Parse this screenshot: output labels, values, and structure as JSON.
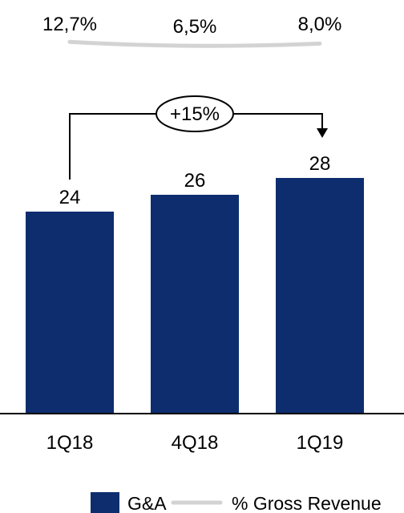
{
  "chart_data": {
    "type": "bar",
    "categories": [
      "1Q18",
      "4Q18",
      "1Q19"
    ],
    "series": [
      {
        "name": "G&A",
        "values": [
          24,
          26,
          28
        ],
        "color": "#0d2d6e"
      }
    ],
    "line_series": {
      "name": "% Gross Revenue",
      "values": [
        12.7,
        6.5,
        8.0
      ],
      "labels": [
        "12,7%",
        "6,5%",
        "8,0%"
      ],
      "color": "#d3d3d3"
    },
    "data_labels": [
      "24",
      "26",
      "28"
    ],
    "annotation": {
      "text": "+15%",
      "from": "1Q18",
      "to": "1Q19"
    },
    "ylim": [
      0,
      30
    ],
    "grid": false,
    "legend_position": "bottom"
  }
}
